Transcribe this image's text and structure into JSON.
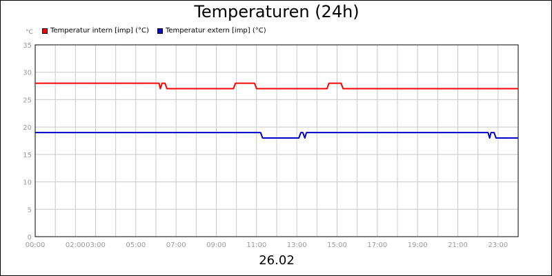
{
  "chart_data": {
    "type": "line",
    "title": "Temperaturen (24h)",
    "ylabel": "°C",
    "xlabel": "26.02",
    "ylim": [
      0,
      35
    ],
    "yticks": [
      0,
      5,
      10,
      15,
      20,
      25,
      30,
      35
    ],
    "xlim": [
      0,
      24
    ],
    "xtick_labels": [
      "00:00",
      "02:00",
      "03:00",
      "05:00",
      "07:00",
      "09:00",
      "11:00",
      "13:00",
      "15:00",
      "17:00",
      "19:00",
      "21:00",
      "23:00"
    ],
    "xtick_positions": [
      0,
      2,
      3,
      5,
      7,
      9,
      11,
      13,
      15,
      17,
      19,
      21,
      23
    ],
    "grid": true,
    "legend_position": "top-left",
    "series": [
      {
        "name": "Temperatur intern [imp] (°C)",
        "color": "#ff0000",
        "points": [
          [
            0,
            28
          ],
          [
            6.15,
            28
          ],
          [
            6.22,
            27
          ],
          [
            6.3,
            28
          ],
          [
            6.45,
            28
          ],
          [
            6.55,
            27
          ],
          [
            9.85,
            27
          ],
          [
            9.95,
            28
          ],
          [
            10.9,
            28
          ],
          [
            11.0,
            27
          ],
          [
            14.5,
            27
          ],
          [
            14.6,
            28
          ],
          [
            15.2,
            28
          ],
          [
            15.3,
            27
          ],
          [
            24,
            27
          ]
        ]
      },
      {
        "name": "Temperatur extern [imp] (°C)",
        "color": "#0000cc",
        "points": [
          [
            0,
            19
          ],
          [
            11.2,
            19
          ],
          [
            11.3,
            18
          ],
          [
            13.1,
            18
          ],
          [
            13.2,
            19
          ],
          [
            13.3,
            19
          ],
          [
            13.4,
            18
          ],
          [
            13.48,
            19
          ],
          [
            22.5,
            19
          ],
          [
            22.58,
            18
          ],
          [
            22.65,
            19
          ],
          [
            22.8,
            19
          ],
          [
            22.9,
            18
          ],
          [
            24,
            18
          ]
        ]
      }
    ]
  }
}
